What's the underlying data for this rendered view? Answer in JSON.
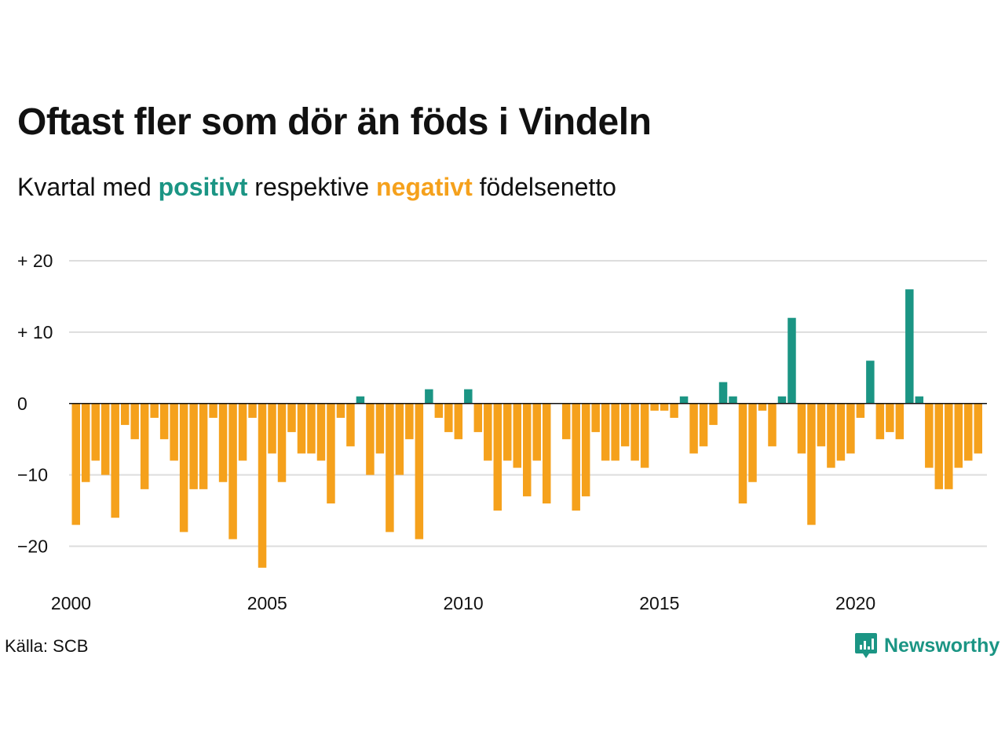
{
  "title": "Oftast fler som dör än föds i Vindeln",
  "subtitle": {
    "prefix": "Kvartal med",
    "positive": "positivt",
    "middle": "respektive",
    "negative": "negativt",
    "suffix": "födelsenetto"
  },
  "source": "Källa: SCB",
  "brand": {
    "name": "Newsworthy",
    "icon": "newsworthy-logo-icon"
  },
  "colors": {
    "positive": "#1b9584",
    "negative": "#f5a11c",
    "grid": "#dddddd",
    "zero": "#111111"
  },
  "chart_data": {
    "type": "bar",
    "title": "Oftast fler som dör än föds i Vindeln",
    "subtitle": "Kvartal med positivt respektive negativt födelsenetto",
    "xlabel": "",
    "ylabel": "",
    "x_start": 2000.0,
    "x_step": 0.25,
    "xlim": [
      1999.95,
      2023.35
    ],
    "ylim": [
      -25,
      20
    ],
    "x_ticks": [
      {
        "value": 2000,
        "label": "2000"
      },
      {
        "value": 2005,
        "label": "2005"
      },
      {
        "value": 2010,
        "label": "2010"
      },
      {
        "value": 2015,
        "label": "2015"
      },
      {
        "value": 2020,
        "label": "2020"
      }
    ],
    "y_ticks": [
      {
        "value": 20,
        "label": "+ 20"
      },
      {
        "value": 10,
        "label": "+ 10"
      },
      {
        "value": 0,
        "label": "0"
      },
      {
        "value": -10,
        "label": "−10"
      },
      {
        "value": -20,
        "label": "−20"
      }
    ],
    "grid": true,
    "values": [
      -17,
      -11,
      -8,
      -10,
      -16,
      -3,
      -5,
      -12,
      -2,
      -5,
      -8,
      -18,
      -12,
      -12,
      -2,
      -11,
      -19,
      -8,
      -2,
      -23,
      -7,
      -11,
      -4,
      -7,
      -7,
      -8,
      -14,
      -2,
      -6,
      1,
      -10,
      -7,
      -18,
      -10,
      -5,
      -19,
      2,
      -2,
      -4,
      -5,
      2,
      -4,
      -8,
      -15,
      -8,
      -9,
      -13,
      -8,
      -14,
      0,
      -5,
      -15,
      -13,
      -4,
      -8,
      -8,
      -6,
      -8,
      -9,
      -1,
      -1,
      -2,
      1,
      -7,
      -6,
      -3,
      3,
      1,
      -14,
      -11,
      -1,
      -6,
      1,
      12,
      -7,
      -17,
      -6,
      -9,
      -8,
      -7,
      -2,
      6,
      -5,
      -4,
      -5,
      16,
      1,
      -9,
      -12,
      -12,
      -9,
      -8,
      -7
    ]
  }
}
